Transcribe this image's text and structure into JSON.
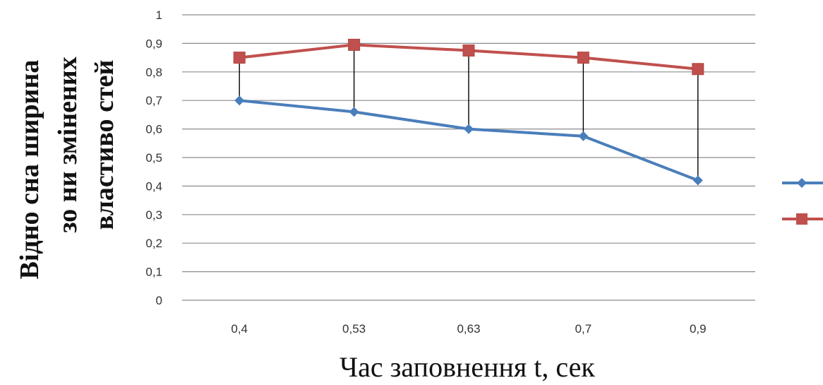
{
  "chart_data": {
    "type": "line",
    "categories": [
      "0,4",
      "0,53",
      "0,63",
      "0,7",
      "0,9"
    ],
    "series": [
      {
        "values": [
          0.7,
          0.66,
          0.6,
          0.575,
          0.42
        ],
        "color": "#4a7ebb",
        "marker": "diamond"
      },
      {
        "values": [
          0.85,
          0.895,
          0.875,
          0.85,
          0.81
        ],
        "color": "#c0504d",
        "marker": "square"
      }
    ],
    "ylim": [
      0,
      1
    ],
    "yticks": [
      {
        "value": 0,
        "label": "0"
      },
      {
        "value": 0.1,
        "label": "0,1"
      },
      {
        "value": 0.2,
        "label": "0,2"
      },
      {
        "value": 0.3,
        "label": "0,3"
      },
      {
        "value": 0.4,
        "label": "0,4"
      },
      {
        "value": 0.5,
        "label": "0,5"
      },
      {
        "value": 0.6,
        "label": "0,6"
      },
      {
        "value": 0.7,
        "label": "0,7"
      },
      {
        "value": 0.8,
        "label": "0,8"
      },
      {
        "value": 0.9,
        "label": "0,9"
      },
      {
        "value": 1,
        "label": "1"
      }
    ],
    "ylabel_lines": [
      "Відно сна ширина",
      "зо ни змінених",
      "властиво стей"
    ],
    "xlabel": "Час заповнення  t, сек",
    "grid": true,
    "drop_lines": true,
    "legend_position": "right"
  }
}
